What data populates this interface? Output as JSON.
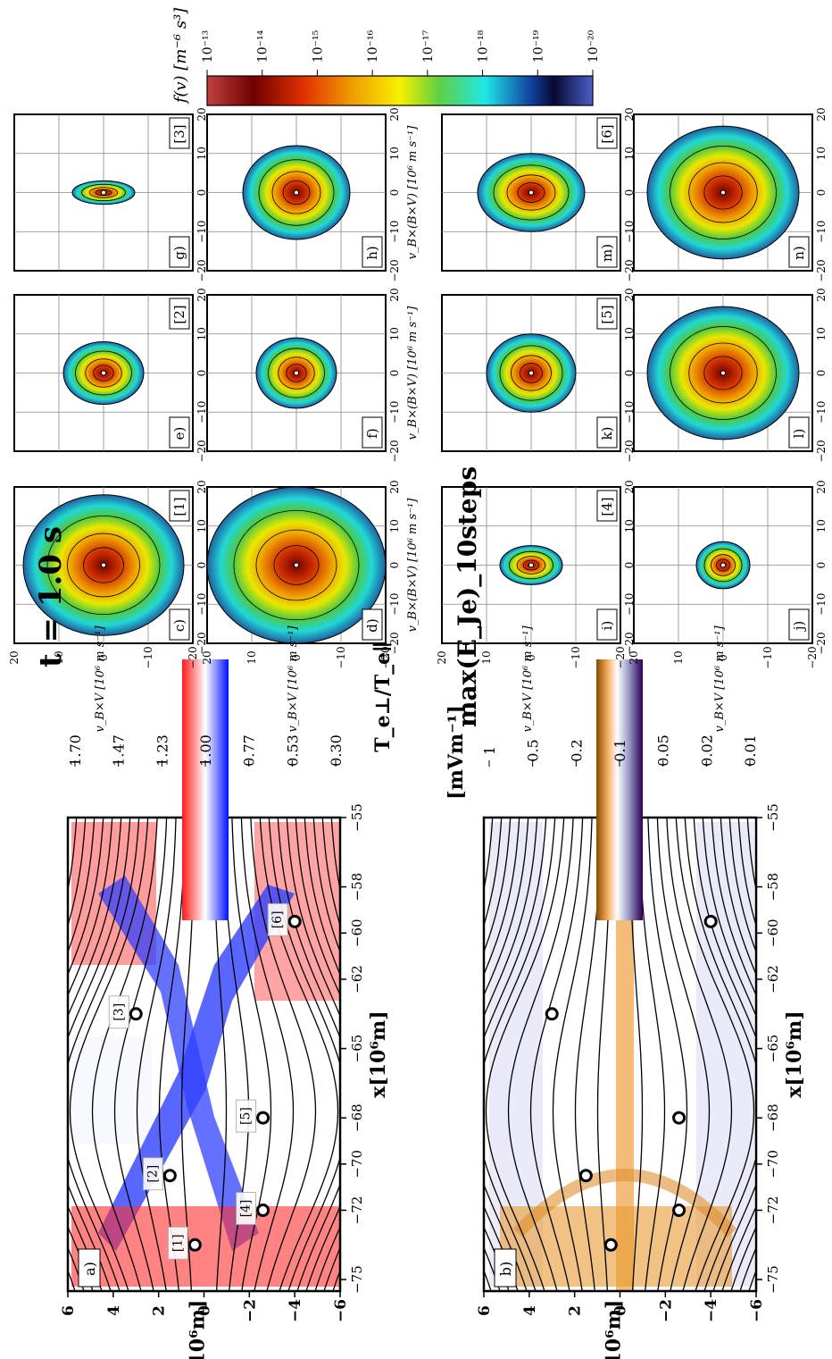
{
  "time_label": "t = 1.0 s",
  "chart_data": [
    {
      "id": "a",
      "type": "heatmap",
      "panel_label": "a)",
      "xlabel": "x[10⁶m]",
      "ylabel": "z[10⁶m]",
      "xticks": [
        "−75",
        "−72",
        "−70",
        "−68",
        "−65",
        "−62",
        "−60",
        "−58",
        "−55"
      ],
      "xtick_values": [
        -75,
        -72,
        -70,
        -68,
        -65,
        -62,
        -60,
        -58,
        -55
      ],
      "yticks": [
        "6",
        "4",
        "2",
        "0",
        "−2",
        "−4",
        "−6"
      ],
      "ytick_values": [
        6,
        4,
        2,
        0,
        -2,
        -4,
        -6
      ],
      "xlim": [
        -75.5,
        -55
      ],
      "ylim": [
        -6,
        6
      ],
      "colorbar": {
        "label": "T_e⊥/T_e∥",
        "ticks": [
          "1.70",
          "1.47",
          "1.23",
          "1.00",
          "0.77",
          "0.53",
          "0.30"
        ],
        "range": [
          0.3,
          1.7
        ],
        "colors": [
          "#ff0000",
          "#ffffff",
          "#0000ff"
        ]
      },
      "points": [
        {
          "label": "[1]",
          "x": -73.5,
          "z": 0.4
        },
        {
          "label": "[2]",
          "x": -70.5,
          "z": 1.5
        },
        {
          "label": "[3]",
          "x": -63.5,
          "z": 3.0
        },
        {
          "label": "[4]",
          "x": -72.0,
          "z": -2.6
        },
        {
          "label": "[5]",
          "x": -68.0,
          "z": -2.6
        },
        {
          "label": "[6]",
          "x": -59.5,
          "z": -4.0
        }
      ]
    },
    {
      "id": "b",
      "type": "heatmap",
      "panel_label": "b)",
      "title": "max(E_Je)_10steps",
      "xlabel": "x[10⁶m]",
      "ylabel": "z[10⁶m]",
      "xticks": [
        "−75",
        "−72",
        "−70",
        "−68",
        "−65",
        "−62",
        "−60",
        "−58",
        "−55"
      ],
      "xtick_values": [
        -75,
        -72,
        -70,
        -68,
        -65,
        -62,
        -60,
        -58,
        -55
      ],
      "yticks": [
        "6",
        "4",
        "2",
        "0",
        "−2",
        "−4",
        "−6"
      ],
      "ytick_values": [
        6,
        4,
        2,
        0,
        -2,
        -4,
        -6
      ],
      "xlim": [
        -75.5,
        -55
      ],
      "ylim": [
        -6,
        6
      ],
      "colorbar": {
        "label": "[mVm⁻¹]",
        "ticks": [
          "1",
          "0.5",
          "0.2",
          "0.1",
          "0.05",
          "0.02",
          "0.01"
        ],
        "scale": "log",
        "range": [
          0.01,
          1
        ],
        "colors": [
          "#8c4a00",
          "#f0a040",
          "#ffffff",
          "#9090c0",
          "#2a0050"
        ]
      },
      "points": [
        {
          "x": -73.5,
          "z": 0.4
        },
        {
          "x": -70.5,
          "z": 1.5
        },
        {
          "x": -63.5,
          "z": 3.0
        },
        {
          "x": -72.0,
          "z": -2.6
        },
        {
          "x": -68.0,
          "z": -2.6
        },
        {
          "x": -59.5,
          "z": -4.0
        }
      ]
    }
  ],
  "vdf": {
    "xlabel_par": "v_B [10⁶ m s⁻¹]",
    "xlabel_perp": "v_B×(B×V) [10⁶ m s⁻¹]",
    "ylabel": "v_B×V [10⁶ m s⁻¹]",
    "ticks": [
      "−20",
      "−10",
      "0",
      "10",
      "20"
    ],
    "tick_values": [
      -20,
      -10,
      0,
      10,
      20
    ],
    "lim": [
      -20,
      20
    ],
    "panels": [
      {
        "letter": "c)",
        "num": "[1]",
        "kind": "par",
        "rx": 18,
        "ry": 18
      },
      {
        "letter": "d)",
        "num": "",
        "kind": "perp",
        "rx": 20,
        "ry": 20
      },
      {
        "letter": "e)",
        "num": "[2]",
        "kind": "par",
        "rx": 9,
        "ry": 8
      },
      {
        "letter": "f)",
        "num": "",
        "kind": "perp",
        "rx": 9,
        "ry": 9
      },
      {
        "letter": "g)",
        "num": "[3]",
        "kind": "par",
        "rx": 7,
        "ry": 3
      },
      {
        "letter": "h)",
        "num": "",
        "kind": "perp",
        "rx": 12,
        "ry": 12
      },
      {
        "letter": "i)",
        "num": "[4]",
        "kind": "par",
        "rx": 7,
        "ry": 5
      },
      {
        "letter": "j)",
        "num": "",
        "kind": "perp",
        "rx": 6,
        "ry": 6
      },
      {
        "letter": "k)",
        "num": "[5]",
        "kind": "par",
        "rx": 10,
        "ry": 10
      },
      {
        "letter": "l)",
        "num": "",
        "kind": "perp",
        "rx": 17,
        "ry": 17
      },
      {
        "letter": "m)",
        "num": "[6]",
        "kind": "par",
        "rx": 12,
        "ry": 10
      },
      {
        "letter": "n)",
        "num": "",
        "kind": "perp",
        "rx": 17,
        "ry": 17
      }
    ],
    "colorbar": {
      "label": "f(v) [m⁻⁶ s³]",
      "ticks": [
        "10⁻¹³",
        "10⁻¹⁴",
        "10⁻¹⁵",
        "10⁻¹⁶",
        "10⁻¹⁷",
        "10⁻¹⁸",
        "10⁻¹⁹",
        "10⁻²⁰"
      ],
      "colors": [
        "#b02a2a",
        "#7a0000",
        "#e84a00",
        "#f0a000",
        "#f8f000",
        "#80e020",
        "#20e0e0",
        "#1040a0",
        "#0a0a40",
        "#4050c0"
      ]
    }
  }
}
